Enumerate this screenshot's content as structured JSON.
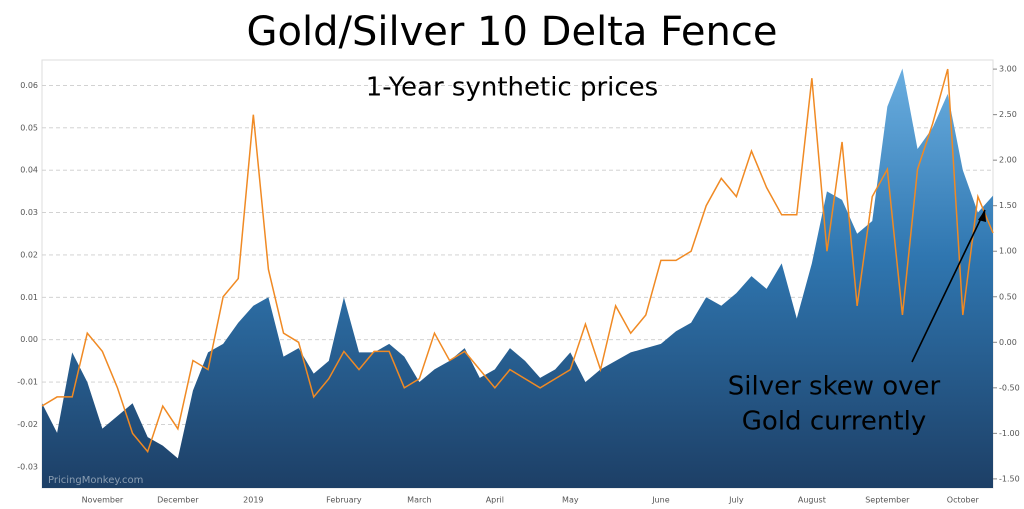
{
  "chart_data": {
    "type": "area-line",
    "title": "Gold/Silver 10 Delta Fence",
    "subtitle": "1-Year synthetic prices",
    "watermark": "PricingMonkey.com",
    "annotation": [
      "Silver skew over",
      "Gold currently"
    ],
    "categories": [
      null,
      null,
      null,
      null,
      "November",
      null,
      null,
      null,
      null,
      "December",
      null,
      null,
      null,
      null,
      "2019",
      null,
      null,
      null,
      null,
      null,
      "February",
      null,
      null,
      null,
      null,
      "March",
      null,
      null,
      null,
      null,
      "April",
      null,
      null,
      null,
      null,
      "May",
      null,
      null,
      null,
      null,
      null,
      "June",
      null,
      null,
      null,
      null,
      "July",
      null,
      null,
      null,
      null,
      "August",
      null,
      null,
      null,
      null,
      "September",
      null,
      null,
      null,
      null,
      "October",
      null,
      null
    ],
    "series": [
      {
        "color": "#2e6da4",
        "axis": "y",
        "values": [
          -0.015,
          -0.022,
          -0.003,
          -0.01,
          -0.021,
          -0.018,
          -0.015,
          -0.023,
          -0.025,
          -0.028,
          -0.012,
          -0.003,
          -0.001,
          0.004,
          0.008,
          0.01,
          -0.004,
          -0.002,
          -0.008,
          -0.005,
          0.01,
          -0.003,
          -0.003,
          -0.001,
          -0.004,
          -0.01,
          -0.007,
          -0.005,
          -0.002,
          -0.009,
          -0.007,
          -0.002,
          -0.005,
          -0.009,
          -0.007,
          -0.003,
          -0.01,
          -0.007,
          -0.005,
          -0.003,
          -0.002,
          -0.001,
          0.002,
          0.004,
          0.01,
          0.008,
          0.011,
          0.015,
          0.012,
          0.018,
          0.005,
          0.018,
          0.035,
          0.033,
          0.025,
          0.028,
          0.055,
          0.064,
          0.045,
          0.05,
          0.058,
          0.04,
          0.03,
          0.034
        ]
      },
      {
        "color": "#f08a24",
        "axis": "y2",
        "values": [
          -0.7,
          -0.6,
          -0.6,
          0.1,
          -0.1,
          -0.5,
          -1.0,
          -1.2,
          -0.7,
          -0.95,
          -0.2,
          -0.3,
          0.5,
          0.7,
          2.5,
          0.8,
          0.1,
          0.0,
          -0.6,
          -0.4,
          -0.1,
          -0.3,
          -0.1,
          -0.1,
          -0.5,
          -0.4,
          0.1,
          -0.2,
          -0.1,
          -0.3,
          -0.5,
          -0.3,
          -0.4,
          -0.5,
          -0.4,
          -0.3,
          0.2,
          -0.3,
          0.4,
          0.1,
          0.3,
          0.9,
          0.9,
          1.0,
          1.5,
          1.8,
          1.6,
          2.1,
          1.7,
          1.4,
          1.4,
          2.9,
          1.0,
          2.2,
          0.4,
          1.6,
          1.9,
          0.3,
          1.9,
          2.4,
          3.0,
          0.3,
          1.6,
          1.2
        ]
      }
    ],
    "ylim": [
      -0.035,
      0.066
    ],
    "yticks": [
      -0.03,
      -0.02,
      -0.01,
      {
        "value": 0,
        "label": "0.00"
      },
      0.01,
      0.02,
      0.03,
      0.04,
      0.05,
      0.06
    ],
    "y2lim": [
      -1.6,
      3.1
    ],
    "y2ticks": [
      {
        "value": -1.5,
        "label": "-1.50"
      },
      {
        "value": -1,
        "label": "-1.00"
      },
      {
        "value": -0.5,
        "label": "-0.50"
      },
      {
        "value": 0,
        "label": "0.00"
      },
      {
        "value": 0.5,
        "label": "0.50"
      },
      {
        "value": 1,
        "label": "1.00"
      },
      {
        "value": 1.5,
        "label": "1.50"
      },
      {
        "value": 2,
        "label": "2.00"
      },
      {
        "value": 2.5,
        "label": "2.50"
      },
      {
        "value": 3,
        "label": "3.00"
      }
    ],
    "grid": true
  }
}
